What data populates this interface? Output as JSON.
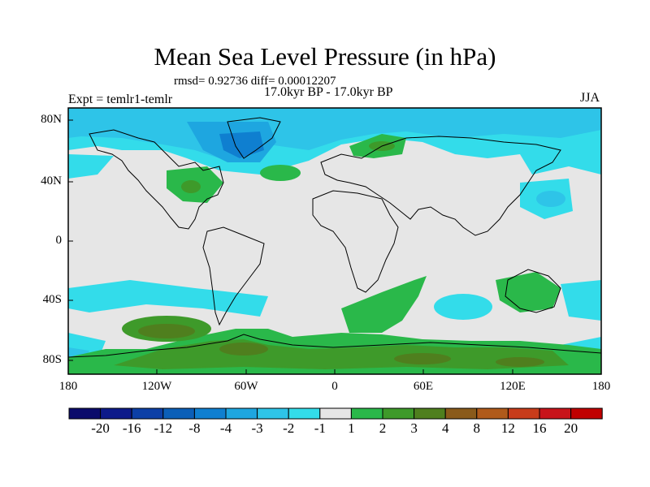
{
  "header": {
    "title": "Mean Sea Level Pressure (in hPa)",
    "rmsd_line": "rmsd= 0.92736 diff= 0.00012207",
    "period": "17.0kyr BP - 17.0kyr BP",
    "expt": "Expt = temlr1-temlr",
    "season": "JJA"
  },
  "axes": {
    "y_ticks": [
      "80N",
      "40N",
      "0",
      "40S",
      "80S"
    ],
    "x_ticks": [
      "180",
      "120W",
      "60W",
      "0",
      "60E",
      "120E",
      "180"
    ]
  },
  "colorbar": {
    "labels": [
      "-20",
      "-16",
      "-12",
      "-8",
      "-4",
      "-3",
      "-2",
      "-1",
      "1",
      "2",
      "3",
      "4",
      "8",
      "12",
      "16",
      "20"
    ],
    "colors": [
      "#0b0b6b",
      "#0d1a8a",
      "#0c3fa6",
      "#0b5fb8",
      "#0f7fd0",
      "#1ea6e0",
      "#2ec4e8",
      "#33dcea",
      "#e6e6e6",
      "#2ab84a",
      "#3e9a2a",
      "#4f7f1e",
      "#8a5a1a",
      "#b05a1a",
      "#c83c1a",
      "#c8141a",
      "#c00000"
    ]
  },
  "map": {
    "background_color": "#e6e6e6",
    "land_outline_color": "#000000"
  }
}
